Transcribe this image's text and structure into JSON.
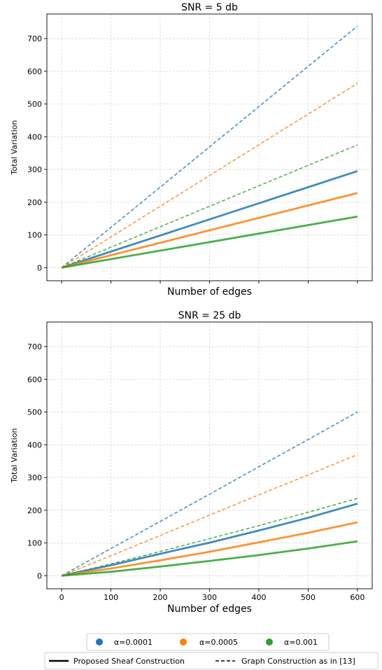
{
  "chart_data": [
    {
      "type": "line",
      "title": "SNR = 5 db",
      "xlabel": "Number of edges",
      "ylabel": "Total Variation",
      "xlim": [
        -30,
        630
      ],
      "ylim": [
        -40,
        775
      ],
      "xticks": [
        0,
        100,
        200,
        300,
        400,
        500,
        600
      ],
      "yticks": [
        0,
        100,
        200,
        300,
        400,
        500,
        600,
        700
      ],
      "show_xtick_labels": false,
      "grid": true,
      "x": [
        0,
        600
      ],
      "series": [
        {
          "alpha": "α=0.0001",
          "construction": "Proposed Sheaf Construction",
          "style": "solid",
          "color": "#1f77b4",
          "values": [
            0,
            295
          ]
        },
        {
          "alpha": "α=0.0005",
          "construction": "Proposed Sheaf Construction",
          "style": "solid",
          "color": "#ff7f0e",
          "values": [
            0,
            228
          ]
        },
        {
          "alpha": "α=0.001",
          "construction": "Proposed Sheaf Construction",
          "style": "solid",
          "color": "#2ca02c",
          "values": [
            0,
            156
          ]
        },
        {
          "alpha": "α=0.0001",
          "construction": "Graph Construction as in [13]",
          "style": "dashed",
          "color": "#1f77b4",
          "values": [
            0,
            738
          ]
        },
        {
          "alpha": "α=0.0005",
          "construction": "Graph Construction as in [13]",
          "style": "dashed",
          "color": "#ff7f0e",
          "values": [
            0,
            563
          ]
        },
        {
          "alpha": "α=0.001",
          "construction": "Graph Construction as in [13]",
          "style": "dashed",
          "color": "#2ca02c",
          "values": [
            0,
            375
          ]
        }
      ]
    },
    {
      "type": "line",
      "title": "SNR = 25 db",
      "xlabel": "Number of edges",
      "ylabel": "Total Variation",
      "xlim": [
        -30,
        630
      ],
      "ylim": [
        -40,
        775
      ],
      "xticks": [
        0,
        100,
        200,
        300,
        400,
        500,
        600
      ],
      "yticks": [
        0,
        100,
        200,
        300,
        400,
        500,
        600,
        700
      ],
      "show_xtick_labels": true,
      "grid": true,
      "x": [
        0,
        100,
        200,
        300,
        400,
        500,
        600
      ],
      "series": [
        {
          "alpha": "α=0.0001",
          "construction": "Proposed Sheaf Construction",
          "style": "solid",
          "color": "#1f77b4",
          "values": [
            0,
            32,
            67,
            101,
            138,
            177,
            220
          ]
        },
        {
          "alpha": "α=0.0005",
          "construction": "Proposed Sheaf Construction",
          "style": "solid",
          "color": "#ff7f0e",
          "values": [
            0,
            22,
            47,
            73,
            102,
            131,
            163
          ]
        },
        {
          "alpha": "α=0.001",
          "construction": "Proposed Sheaf Construction",
          "style": "solid",
          "color": "#2ca02c",
          "values": [
            0,
            12,
            28,
            45,
            63,
            83,
            105
          ]
        },
        {
          "alpha": "α=0.0001",
          "construction": "Graph Construction as in [13]",
          "style": "dashed",
          "color": "#1f77b4",
          "values": [
            0,
            83,
            166,
            249,
            333,
            416,
            500
          ]
        },
        {
          "alpha": "α=0.0005",
          "construction": "Graph Construction as in [13]",
          "style": "dashed",
          "color": "#ff7f0e",
          "values": [
            0,
            61,
            123,
            185,
            247,
            308,
            370
          ]
        },
        {
          "alpha": "α=0.001",
          "construction": "Graph Construction as in [13]",
          "style": "dashed",
          "color": "#2ca02c",
          "values": [
            0,
            36,
            74,
            113,
            153,
            194,
            236
          ]
        }
      ]
    }
  ],
  "legend": {
    "placement": "bottom-center",
    "alphas": [
      {
        "label": "α=0.0001",
        "color": "#1f77b4"
      },
      {
        "label": "α=0.0005",
        "color": "#ff7f0e"
      },
      {
        "label": "α=0.001",
        "color": "#2ca02c"
      }
    ],
    "styles": [
      {
        "label": "Proposed Sheaf Construction",
        "style": "solid"
      },
      {
        "label": "Graph Construction as in [13]",
        "style": "dashed"
      }
    ]
  }
}
